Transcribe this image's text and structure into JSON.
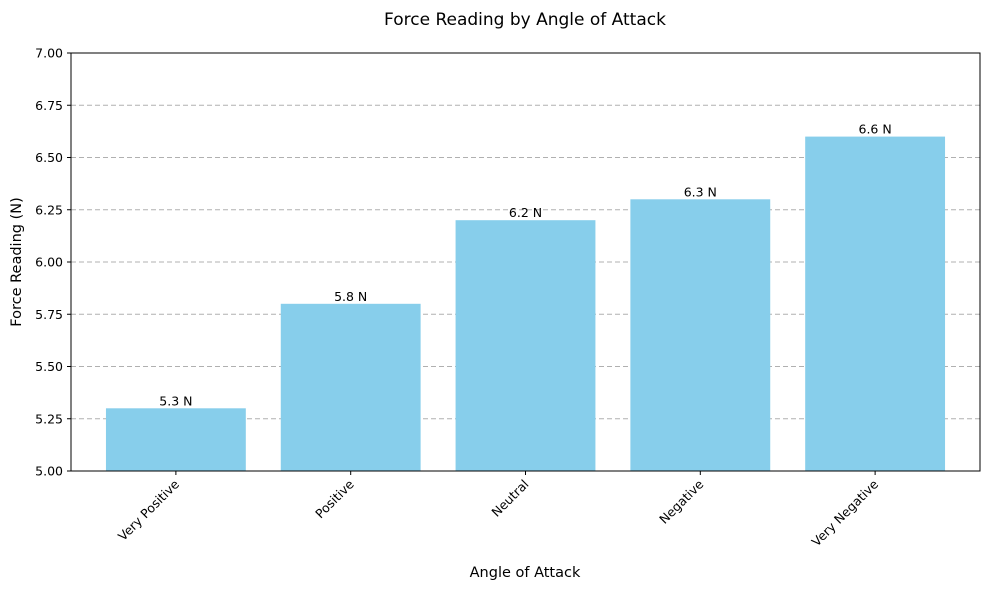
{
  "chart_data": {
    "type": "bar",
    "title": "Force Reading by Angle of Attack",
    "xlabel": "Angle of Attack",
    "ylabel": "Force Reading (N)",
    "categories": [
      "Very Positive",
      "Positive",
      "Neutral",
      "Negative",
      "Very Negative"
    ],
    "values": [
      5.3,
      5.8,
      6.2,
      6.3,
      6.6
    ],
    "value_labels": [
      "5.3 N",
      "5.8 N",
      "6.2 N",
      "6.3 N",
      "6.6 N"
    ],
    "ylim": [
      5.0,
      7.0
    ],
    "yticks": [
      5.0,
      5.25,
      5.5,
      5.75,
      6.0,
      6.25,
      6.5,
      6.75,
      7.0
    ],
    "ytick_labels": [
      "5.00",
      "5.25",
      "5.50",
      "5.75",
      "6.00",
      "6.25",
      "6.50",
      "6.75",
      "7.00"
    ],
    "grid": "y-dashed",
    "bar_color": "#87CEEB"
  }
}
